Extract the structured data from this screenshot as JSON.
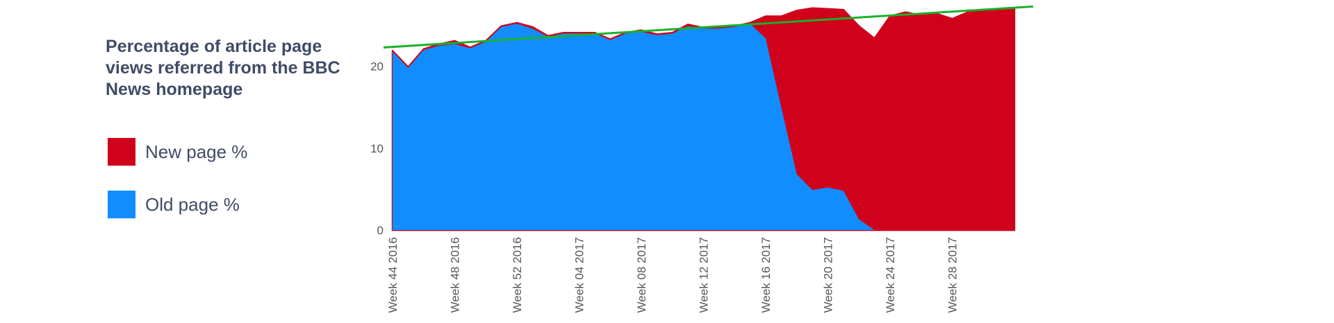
{
  "chart_data": {
    "type": "area",
    "title": "Percentage of article page views referred from the BBC News homepage",
    "xlabel": "",
    "ylabel": "",
    "ylim": [
      0,
      27.5
    ],
    "yticks": [
      0,
      10,
      20
    ],
    "x_tick_labels": [
      "Week 44 2016",
      "Week 48 2016",
      "Week 52 2016",
      "Week 04 2017",
      "Week 08 2017",
      "Week 12 2017",
      "Week 16 2017",
      "Week 20 2017",
      "Week 24 2017",
      "Week 28 2017"
    ],
    "x_tick_every": 4,
    "grid": false,
    "legend_placement": "left",
    "stacked": true,
    "series": [
      {
        "name": "Old page %",
        "color": "#118dff",
        "values": [
          21.8,
          19.8,
          22.0,
          22.5,
          22.7,
          22.2,
          23.0,
          24.8,
          25.2,
          24.6,
          23.6,
          24.0,
          24.0,
          24.0,
          23.2,
          24.0,
          24.2,
          23.8,
          24.0,
          24.9,
          24.6,
          24.6,
          24.8,
          25.2,
          23.4,
          15.0,
          6.8,
          4.9,
          5.2,
          4.8,
          1.3,
          0,
          0,
          0,
          0,
          0,
          0,
          0,
          0,
          0,
          0
        ]
      },
      {
        "name": "New page %",
        "color": "#d0021b",
        "values": [
          0.1,
          0.1,
          0.1,
          0.2,
          0.4,
          0.1,
          0.1,
          0.1,
          0.1,
          0.2,
          0.1,
          0.1,
          0.1,
          0.1,
          0.1,
          0.1,
          0.2,
          0.1,
          0.1,
          0.2,
          0.1,
          0.1,
          0.1,
          0.1,
          2.7,
          11.1,
          20.0,
          22.2,
          21.8,
          22.1,
          23.6,
          23.4,
          26.1,
          26.6,
          26.2,
          26.4,
          25.8,
          26.6,
          26.9,
          26.8,
          27.0
        ]
      }
    ],
    "trendline": {
      "color": "#1ab12b",
      "start_value": 22.3,
      "end_value": 27.3
    }
  },
  "legend": [
    {
      "label": "New page %",
      "color": "#d0021b"
    },
    {
      "label": "Old page %",
      "color": "#118dff"
    }
  ]
}
